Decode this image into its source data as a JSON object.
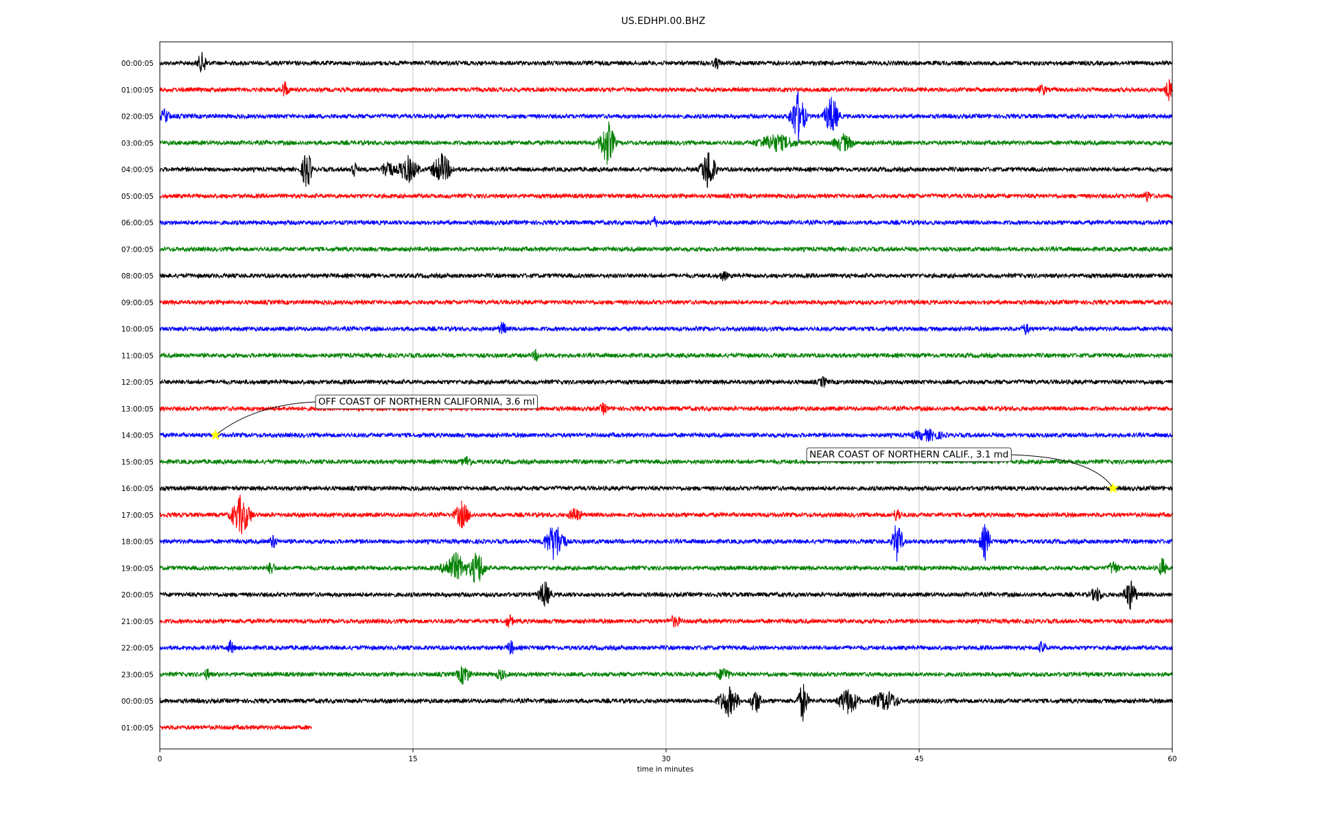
{
  "chart_data": {
    "type": "line",
    "title": "US.EDHPI.00.BHZ",
    "xlabel": "time in minutes",
    "ylabel": "",
    "xlim": [
      0,
      60
    ],
    "x_ticks": [
      "0",
      "15",
      "30",
      "45",
      "60"
    ],
    "grid_x": true,
    "row_colors": [
      "#000000",
      "#ff0000",
      "#0000ff",
      "#008000"
    ],
    "rows": [
      {
        "label": "00:00:05",
        "end_min": 60,
        "events": [
          {
            "t": 2.5,
            "a": 0.6,
            "w": 0.4
          },
          {
            "t": 33,
            "a": 0.3,
            "w": 0.3
          }
        ]
      },
      {
        "label": "01:00:05",
        "end_min": 60,
        "events": [
          {
            "t": 7.4,
            "a": 0.5,
            "w": 0.3
          },
          {
            "t": 52.3,
            "a": 0.3,
            "w": 0.3
          },
          {
            "t": 59.8,
            "a": 0.6,
            "w": 0.3
          }
        ]
      },
      {
        "label": "02:00:05",
        "end_min": 60,
        "events": [
          {
            "t": 0.3,
            "a": 0.4,
            "w": 0.4
          },
          {
            "t": 37.8,
            "a": 1.6,
            "w": 0.6
          },
          {
            "t": 39.8,
            "a": 1.2,
            "w": 0.6
          }
        ]
      },
      {
        "label": "03:00:05",
        "end_min": 60,
        "events": [
          {
            "t": 26.5,
            "a": 1.4,
            "w": 0.6
          },
          {
            "t": 36.5,
            "a": 0.5,
            "w": 1.5
          },
          {
            "t": 40.5,
            "a": 0.5,
            "w": 0.8
          }
        ]
      },
      {
        "label": "04:00:05",
        "end_min": 60,
        "events": [
          {
            "t": 8.7,
            "a": 1.3,
            "w": 0.4
          },
          {
            "t": 11.5,
            "a": 0.5,
            "w": 0.3
          },
          {
            "t": 13.5,
            "a": 0.6,
            "w": 0.5
          },
          {
            "t": 14.7,
            "a": 0.8,
            "w": 0.8
          },
          {
            "t": 16.7,
            "a": 0.9,
            "w": 0.8
          },
          {
            "t": 32.5,
            "a": 1.3,
            "w": 0.6
          }
        ]
      },
      {
        "label": "05:00:05",
        "end_min": 60,
        "events": [
          {
            "t": 58.5,
            "a": 0.3,
            "w": 0.3
          }
        ]
      },
      {
        "label": "06:00:05",
        "end_min": 60,
        "events": [
          {
            "t": 29.3,
            "a": 0.3,
            "w": 0.3
          }
        ]
      },
      {
        "label": "07:00:05",
        "end_min": 60,
        "events": []
      },
      {
        "label": "08:00:05",
        "end_min": 60,
        "events": [
          {
            "t": 33.4,
            "a": 0.3,
            "w": 0.3
          }
        ]
      },
      {
        "label": "09:00:05",
        "end_min": 60,
        "events": []
      },
      {
        "label": "10:00:05",
        "end_min": 60,
        "events": [
          {
            "t": 20.3,
            "a": 0.4,
            "w": 0.3
          },
          {
            "t": 51.3,
            "a": 0.3,
            "w": 0.3
          }
        ]
      },
      {
        "label": "11:00:05",
        "end_min": 60,
        "events": [
          {
            "t": 22.3,
            "a": 0.3,
            "w": 0.3
          }
        ]
      },
      {
        "label": "12:00:05",
        "end_min": 60,
        "events": [
          {
            "t": 39.3,
            "a": 0.3,
            "w": 0.3
          }
        ]
      },
      {
        "label": "13:00:05",
        "end_min": 60,
        "events": [
          {
            "t": 26.3,
            "a": 0.3,
            "w": 0.3
          }
        ]
      },
      {
        "label": "14:00:05",
        "end_min": 60,
        "events": [
          {
            "t": 45.5,
            "a": 0.3,
            "w": 1.2
          }
        ]
      },
      {
        "label": "15:00:05",
        "end_min": 60,
        "events": [
          {
            "t": 18.2,
            "a": 0.3,
            "w": 0.4
          }
        ]
      },
      {
        "label": "16:00:05",
        "end_min": 60,
        "events": []
      },
      {
        "label": "17:00:05",
        "end_min": 60,
        "events": [
          {
            "t": 4.8,
            "a": 1.2,
            "w": 0.8
          },
          {
            "t": 17.9,
            "a": 0.8,
            "w": 0.6
          },
          {
            "t": 24.6,
            "a": 0.4,
            "w": 0.5
          },
          {
            "t": 43.7,
            "a": 0.4,
            "w": 0.3
          }
        ]
      },
      {
        "label": "18:00:05",
        "end_min": 60,
        "events": [
          {
            "t": 6.7,
            "a": 0.4,
            "w": 0.3
          },
          {
            "t": 23.4,
            "a": 1.2,
            "w": 0.8
          },
          {
            "t": 43.7,
            "a": 1.3,
            "w": 0.4
          },
          {
            "t": 48.9,
            "a": 1.1,
            "w": 0.4
          }
        ]
      },
      {
        "label": "19:00:05",
        "end_min": 60,
        "events": [
          {
            "t": 6.6,
            "a": 0.4,
            "w": 0.3
          },
          {
            "t": 17.5,
            "a": 0.9,
            "w": 1.0
          },
          {
            "t": 18.8,
            "a": 1.1,
            "w": 0.6
          },
          {
            "t": 56.5,
            "a": 0.4,
            "w": 0.4
          },
          {
            "t": 59.4,
            "a": 0.6,
            "w": 0.3
          }
        ]
      },
      {
        "label": "20:00:05",
        "end_min": 60,
        "events": [
          {
            "t": 22.8,
            "a": 0.8,
            "w": 0.5
          },
          {
            "t": 55.5,
            "a": 0.4,
            "w": 0.5
          },
          {
            "t": 57.5,
            "a": 0.9,
            "w": 0.5
          }
        ]
      },
      {
        "label": "21:00:05",
        "end_min": 60,
        "events": [
          {
            "t": 20.7,
            "a": 0.4,
            "w": 0.3
          },
          {
            "t": 30.5,
            "a": 0.3,
            "w": 0.5
          }
        ]
      },
      {
        "label": "22:00:05",
        "end_min": 60,
        "events": [
          {
            "t": 4.2,
            "a": 0.4,
            "w": 0.3
          },
          {
            "t": 20.8,
            "a": 0.4,
            "w": 0.3
          },
          {
            "t": 52.3,
            "a": 0.4,
            "w": 0.3
          }
        ]
      },
      {
        "label": "23:00:05",
        "end_min": 60,
        "events": [
          {
            "t": 2.8,
            "a": 0.3,
            "w": 0.3
          },
          {
            "t": 18,
            "a": 0.6,
            "w": 0.5
          },
          {
            "t": 20.2,
            "a": 0.3,
            "w": 0.4
          },
          {
            "t": 33.4,
            "a": 0.4,
            "w": 0.5
          }
        ]
      },
      {
        "label": "00:00:05",
        "end_min": 60,
        "events": [
          {
            "t": 33.7,
            "a": 0.9,
            "w": 0.8
          },
          {
            "t": 35.3,
            "a": 0.8,
            "w": 0.4
          },
          {
            "t": 38.1,
            "a": 1.2,
            "w": 0.4
          },
          {
            "t": 40.8,
            "a": 0.8,
            "w": 0.8
          },
          {
            "t": 43,
            "a": 0.6,
            "w": 1.0
          }
        ]
      },
      {
        "label": "01:00:05",
        "end_min": 9.0,
        "events": []
      }
    ],
    "annotations": [
      {
        "text": "OFF COAST OF NORTHERN CALIFORNIA, 3.6 ml",
        "row": 14,
        "t": 3.3
      },
      {
        "text": "NEAR COAST OF NORTHERN CALIF., 3.1 md",
        "row": 16,
        "t": 56.5
      }
    ],
    "marker_color": "#ffff00"
  }
}
